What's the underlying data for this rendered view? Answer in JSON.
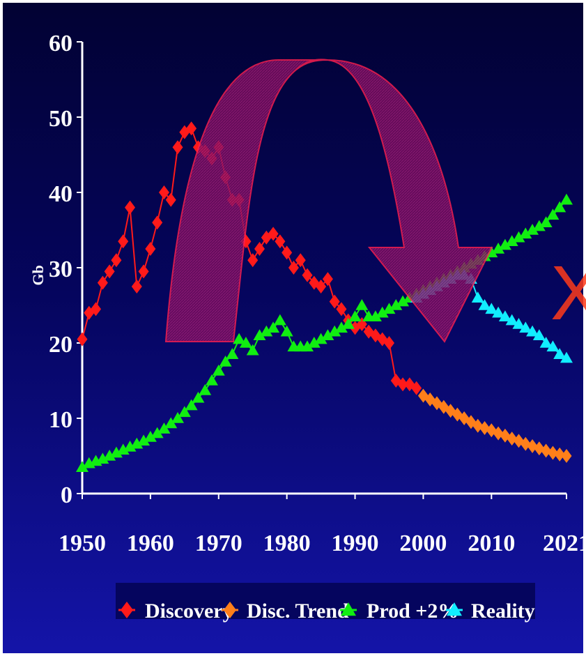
{
  "colors": {
    "discovery": "#ff1a1a",
    "disc_trend": "#ff7f1a",
    "prod": "#11ee11",
    "reality": "#11eeff",
    "arrow": "#8a0f66",
    "arrow_edge": "#ff2050",
    "marker_x": "#ff3a1a"
  },
  "annotation": {
    "big_x": "X"
  },
  "chart_data": {
    "type": "line",
    "ylabel": "Gb",
    "xlabel": "",
    "xlim": [
      1950,
      2021
    ],
    "ylim": [
      0,
      60
    ],
    "xticks": [
      "1950",
      "1960",
      "1970",
      "1980",
      "1990",
      "2000",
      "2010",
      "2021"
    ],
    "yticks": [
      "0",
      "10",
      "20",
      "30",
      "40",
      "50",
      "60"
    ],
    "legend_position": "bottom",
    "series": [
      {
        "name": "Discovery",
        "marker": "diamond",
        "x": [
          1950,
          1951,
          1952,
          1953,
          1954,
          1955,
          1956,
          1957,
          1958,
          1959,
          1960,
          1961,
          1962,
          1963,
          1964,
          1965,
          1966,
          1967,
          1968,
          1969,
          1970,
          1971,
          1972,
          1973,
          1974,
          1975,
          1976,
          1977,
          1978,
          1979,
          1980,
          1981,
          1982,
          1983,
          1984,
          1985,
          1986,
          1987,
          1988,
          1989,
          1990,
          1991,
          1992,
          1993,
          1994,
          1995,
          1996,
          1997,
          1998,
          1999
        ],
        "y": [
          20.5,
          24,
          24.5,
          28,
          29.5,
          31,
          33.5,
          38,
          27.5,
          29.5,
          32.5,
          36,
          40,
          39,
          46,
          48,
          48.5,
          46,
          45.5,
          44.5,
          46,
          42,
          39,
          39,
          33.5,
          31,
          32.5,
          34,
          34.5,
          33.5,
          32,
          30,
          31,
          29,
          28,
          27.5,
          28.5,
          25.5,
          24.5,
          23,
          22,
          22.5,
          21.5,
          21,
          20.5,
          20,
          15,
          14.5,
          14.5,
          14
        ]
      },
      {
        "name": "Disc. Trend",
        "marker": "diamond",
        "x": [
          2000,
          2001,
          2002,
          2003,
          2004,
          2005,
          2006,
          2007,
          2008,
          2009,
          2010,
          2011,
          2012,
          2013,
          2014,
          2015,
          2016,
          2017,
          2018,
          2019,
          2020,
          2021
        ],
        "y": [
          13,
          12.5,
          12,
          11.5,
          11,
          10.5,
          10,
          9.5,
          9,
          8.7,
          8.4,
          8,
          7.7,
          7.3,
          7,
          6.6,
          6.3,
          6,
          5.7,
          5.4,
          5.2,
          5
        ]
      },
      {
        "name": "Prod +2%",
        "marker": "triangle",
        "x": [
          1950,
          1951,
          1952,
          1953,
          1954,
          1955,
          1956,
          1957,
          1958,
          1959,
          1960,
          1961,
          1962,
          1963,
          1964,
          1965,
          1966,
          1967,
          1968,
          1969,
          1970,
          1971,
          1972,
          1973,
          1974,
          1975,
          1976,
          1977,
          1978,
          1979,
          1980,
          1981,
          1982,
          1983,
          1984,
          1985,
          1986,
          1987,
          1988,
          1989,
          1990,
          1991,
          1992,
          1993,
          1994,
          1995,
          1996,
          1997,
          1998,
          1999,
          2000,
          2001,
          2002,
          2003,
          2004,
          2005,
          2006,
          2007,
          2008,
          2009,
          2010,
          2011,
          2012,
          2013,
          2014,
          2015,
          2016,
          2017,
          2018,
          2019,
          2020,
          2021
        ],
        "y": [
          3.5,
          4,
          4.3,
          4.6,
          5,
          5.4,
          5.8,
          6.2,
          6.6,
          7,
          7.5,
          8,
          8.6,
          9.3,
          10,
          10.8,
          11.7,
          12.7,
          13.7,
          15,
          16.3,
          17.5,
          18.5,
          20.5,
          20,
          19,
          21,
          21.5,
          22,
          23,
          21.5,
          19.5,
          19.5,
          19.5,
          20,
          20.5,
          21,
          21.5,
          22,
          22.5,
          23.5,
          25,
          23.5,
          23.5,
          24,
          24.5,
          25,
          25.5,
          26,
          26.5,
          27,
          27.5,
          28,
          28.5,
          29,
          29.5,
          30,
          30.5,
          31,
          31.5,
          32,
          32.5,
          33,
          33.5,
          34,
          34.5,
          35,
          35.5,
          36,
          37,
          38,
          39
        ]
      },
      {
        "name": "Reality",
        "marker": "triangle",
        "x": [
          1999,
          2000,
          2001,
          2002,
          2003,
          2004,
          2005,
          2006,
          2007,
          2008,
          2009,
          2010,
          2011,
          2012,
          2013,
          2014,
          2015,
          2016,
          2017,
          2018,
          2019,
          2020,
          2021
        ],
        "y": [
          26,
          26.5,
          27,
          27.5,
          28,
          28.5,
          29,
          29,
          28.5,
          26,
          25,
          24.5,
          24,
          23.5,
          23,
          22.5,
          22,
          21.5,
          21,
          20,
          19.5,
          18.5,
          18
        ]
      }
    ]
  }
}
